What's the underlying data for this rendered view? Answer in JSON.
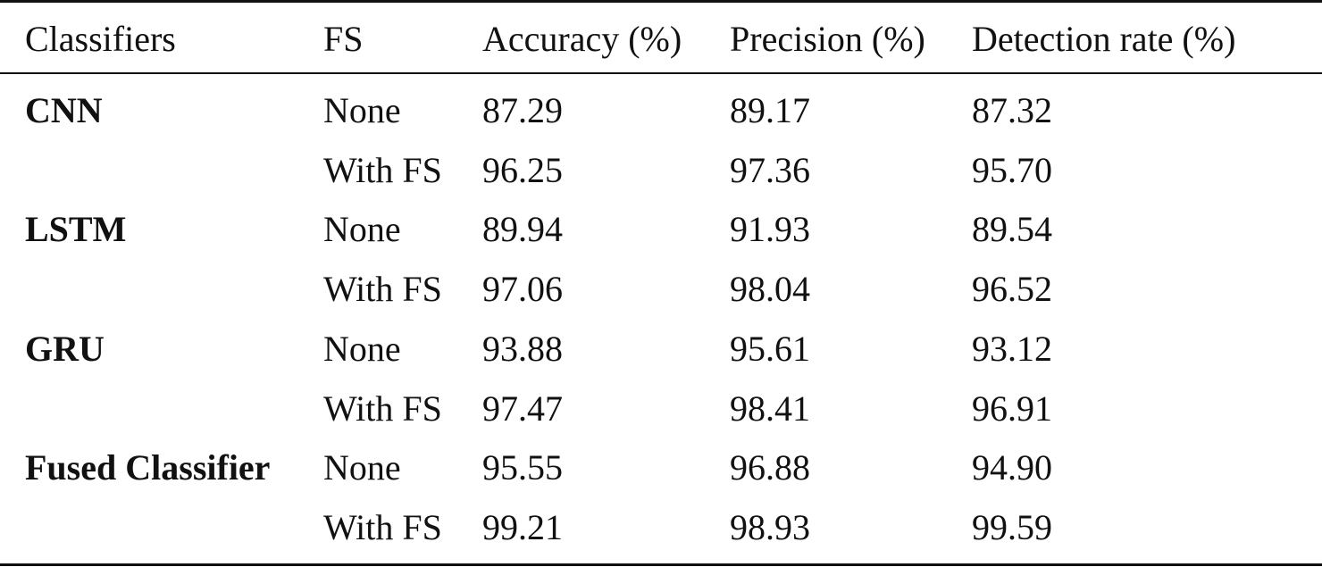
{
  "table": {
    "header": [
      "Classifiers",
      "FS",
      "Accuracy (%)",
      "Precision (%)",
      "Detection rate (%)"
    ],
    "groups": [
      {
        "classifier": "CNN",
        "rows": [
          [
            "None",
            "87.29",
            "89.17",
            "87.32"
          ],
          [
            "With FS",
            "96.25",
            "97.36",
            "95.70"
          ]
        ]
      },
      {
        "classifier": "LSTM",
        "rows": [
          [
            "None",
            "89.94",
            "91.93",
            "89.54"
          ],
          [
            "With FS",
            "97.06",
            "98.04",
            "96.52"
          ]
        ]
      },
      {
        "classifier": "GRU",
        "rows": [
          [
            "None",
            "93.88",
            "95.61",
            "93.12"
          ],
          [
            "With FS",
            "97.47",
            "98.41",
            "96.91"
          ]
        ]
      },
      {
        "classifier": "Fused Classifier",
        "rows": [
          [
            "None",
            "95.55",
            "96.88",
            "94.90"
          ],
          [
            "With FS",
            "99.21",
            "98.93",
            "99.59"
          ]
        ]
      }
    ]
  }
}
